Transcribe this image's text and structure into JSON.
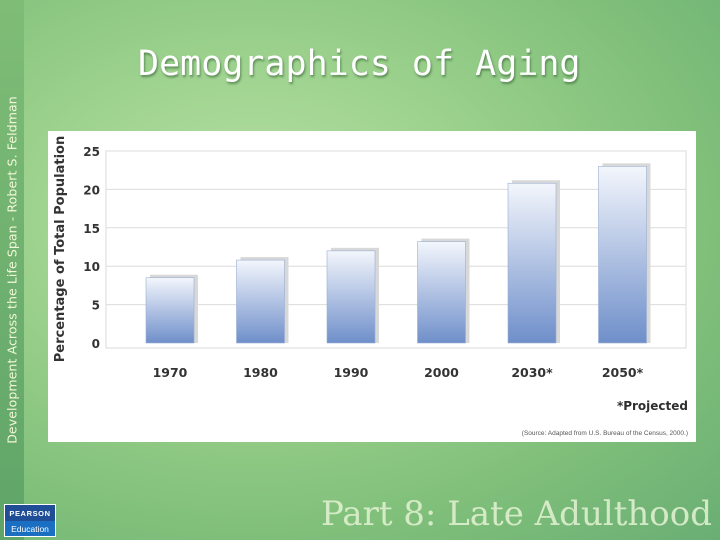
{
  "slide": {
    "side_text": "Development Across the Life Span - Robert S. Feldman",
    "title": "Demographics of Aging",
    "footer": "Part 8: Late Adulthood",
    "logo_top": "PEARSON",
    "logo_bottom": "Education"
  },
  "chart_data": {
    "type": "bar",
    "categories": [
      "1970",
      "1980",
      "1990",
      "2000",
      "2030*",
      "2050*"
    ],
    "values": [
      8.5,
      10.8,
      12.0,
      13.2,
      20.8,
      23.0
    ],
    "ylabel": "Percentage of Total Population",
    "ylim": [
      0,
      25
    ],
    "yticks": [
      0,
      5,
      10,
      15,
      20,
      25
    ],
    "grid": true,
    "note": "*Projected",
    "source": "(Source: Adapted from U.S. Bureau of the Census, 2000.)",
    "bar_color_top": "#f3f6fc",
    "bar_color_bottom": "#6f8fca"
  }
}
